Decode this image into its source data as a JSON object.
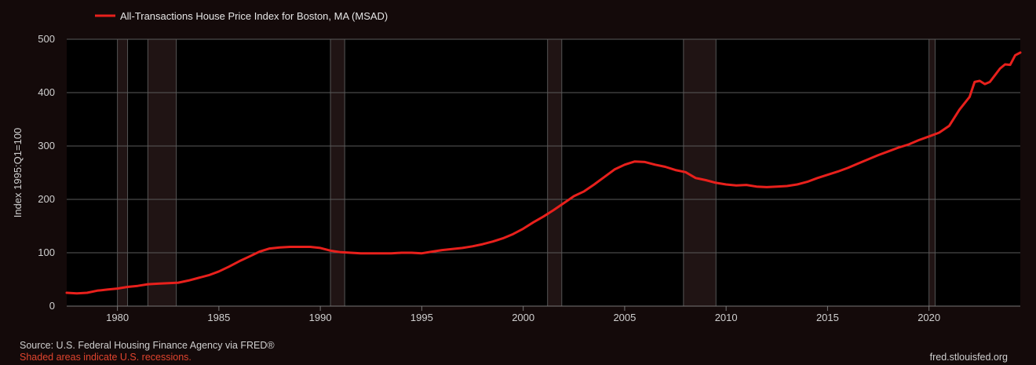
{
  "footer": {
    "source": "Source: U.S. Federal Housing Finance Agency via FRED®",
    "recession_note": "Shaded areas indicate U.S. recessions.",
    "watermark": "fred.stlouisfed.org"
  },
  "colors": {
    "background": "#140a0a",
    "plot_background": "#000000",
    "line": "#e8201c",
    "recession_shade": "#201414",
    "recession_note": "#e0442e"
  },
  "chart_data": {
    "type": "line",
    "title": "",
    "xlabel": "",
    "ylabel": "Index 1995:Q1=100",
    "xlim": [
      1977.5,
      2024.5
    ],
    "ylim": [
      0,
      500
    ],
    "grid": true,
    "legend_position": "top-left",
    "xticks": [
      1980,
      1985,
      1990,
      1995,
      2000,
      2005,
      2010,
      2015,
      2020
    ],
    "yticks": [
      0,
      100,
      200,
      300,
      400,
      500
    ],
    "recessions": [
      [
        1980.0,
        1980.5
      ],
      [
        1981.5,
        1982.9
      ],
      [
        1990.5,
        1991.2
      ],
      [
        2001.2,
        2001.9
      ],
      [
        2007.9,
        2009.5
      ],
      [
        2020.0,
        2020.3
      ]
    ],
    "series": [
      {
        "name": "All-Transactions House Price Index for Boston, MA (MSAD)",
        "x": [
          1977.5,
          1978.0,
          1978.5,
          1979.0,
          1979.5,
          1980.0,
          1980.5,
          1981.0,
          1981.5,
          1982.0,
          1982.5,
          1983.0,
          1983.5,
          1984.0,
          1984.5,
          1985.0,
          1985.5,
          1986.0,
          1986.5,
          1987.0,
          1987.5,
          1988.0,
          1988.5,
          1989.0,
          1989.5,
          1990.0,
          1990.5,
          1991.0,
          1991.5,
          1992.0,
          1992.5,
          1993.0,
          1993.5,
          1994.0,
          1994.5,
          1995.0,
          1995.5,
          1996.0,
          1996.5,
          1997.0,
          1997.5,
          1998.0,
          1998.5,
          1999.0,
          1999.5,
          2000.0,
          2000.5,
          2001.0,
          2001.5,
          2002.0,
          2002.5,
          2003.0,
          2003.5,
          2004.0,
          2004.5,
          2005.0,
          2005.5,
          2006.0,
          2006.5,
          2007.0,
          2007.5,
          2008.0,
          2008.5,
          2009.0,
          2009.5,
          2010.0,
          2010.5,
          2011.0,
          2011.5,
          2012.0,
          2012.5,
          2013.0,
          2013.5,
          2014.0,
          2014.5,
          2015.0,
          2015.5,
          2016.0,
          2016.5,
          2017.0,
          2017.5,
          2018.0,
          2018.5,
          2019.0,
          2019.5,
          2020.0,
          2020.5,
          2021.0,
          2021.5,
          2022.0,
          2022.25,
          2022.5,
          2022.75,
          2023.0,
          2023.5,
          2023.75,
          2024.0,
          2024.25,
          2024.5
        ],
        "values": [
          25,
          24,
          25,
          29,
          31,
          33,
          36,
          38,
          41,
          42,
          43,
          44,
          48,
          53,
          58,
          65,
          74,
          84,
          93,
          102,
          108,
          110,
          111,
          111,
          111,
          109,
          104,
          101,
          100,
          99,
          99,
          99,
          99,
          100,
          100,
          99,
          102,
          105,
          107,
          109,
          112,
          116,
          121,
          127,
          135,
          145,
          157,
          168,
          180,
          193,
          206,
          215,
          228,
          242,
          256,
          265,
          271,
          270,
          265,
          261,
          255,
          251,
          240,
          236,
          231,
          228,
          226,
          227,
          224,
          223,
          224,
          225,
          228,
          233,
          240,
          246,
          252,
          259,
          267,
          275,
          283,
          290,
          297,
          303,
          311,
          318,
          325,
          338,
          368,
          392,
          420,
          422,
          416,
          420,
          445,
          453,
          452,
          470,
          475
        ]
      }
    ]
  }
}
